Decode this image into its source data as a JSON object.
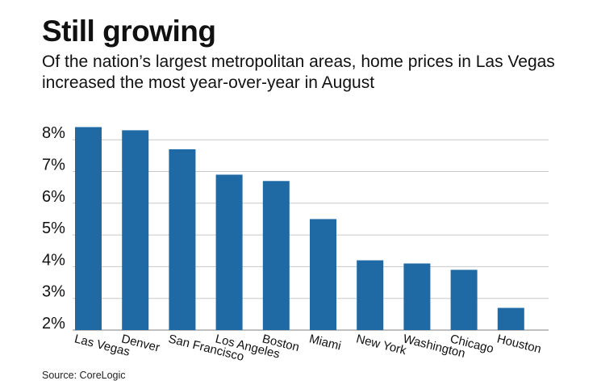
{
  "header": {
    "title": "Still growing",
    "subtitle": "Of the nation’s largest metropolitan areas, home prices in Las Vegas increased the most year-over-year in August"
  },
  "footer": {
    "source": "Source: CoreLogic"
  },
  "colors": {
    "bar": "#1f6aa5",
    "grid": "#c8c8c8",
    "text": "#111111"
  },
  "chart_data": {
    "type": "bar",
    "title": "Still growing",
    "subtitle": "Of the nation’s largest metropolitan areas, home prices in Las Vegas increased the most year-over-year in August",
    "xlabel": "",
    "ylabel": "",
    "categories": [
      "Las Vegas",
      "Denver",
      "San Francisco",
      "Los Angeles",
      "Boston",
      "Miami",
      "New York",
      "Washington",
      "Chicago",
      "Houston"
    ],
    "values": [
      8.4,
      8.3,
      7.7,
      6.9,
      6.7,
      5.5,
      4.2,
      4.1,
      3.9,
      2.7
    ],
    "ylim": [
      2,
      8.5
    ],
    "yticks": [
      2,
      3,
      4,
      5,
      6,
      7,
      8
    ],
    "ytick_labels": [
      "2%",
      "3%",
      "4%",
      "5%",
      "6%",
      "7%",
      "8%"
    ],
    "grid": true,
    "legend": "none"
  }
}
